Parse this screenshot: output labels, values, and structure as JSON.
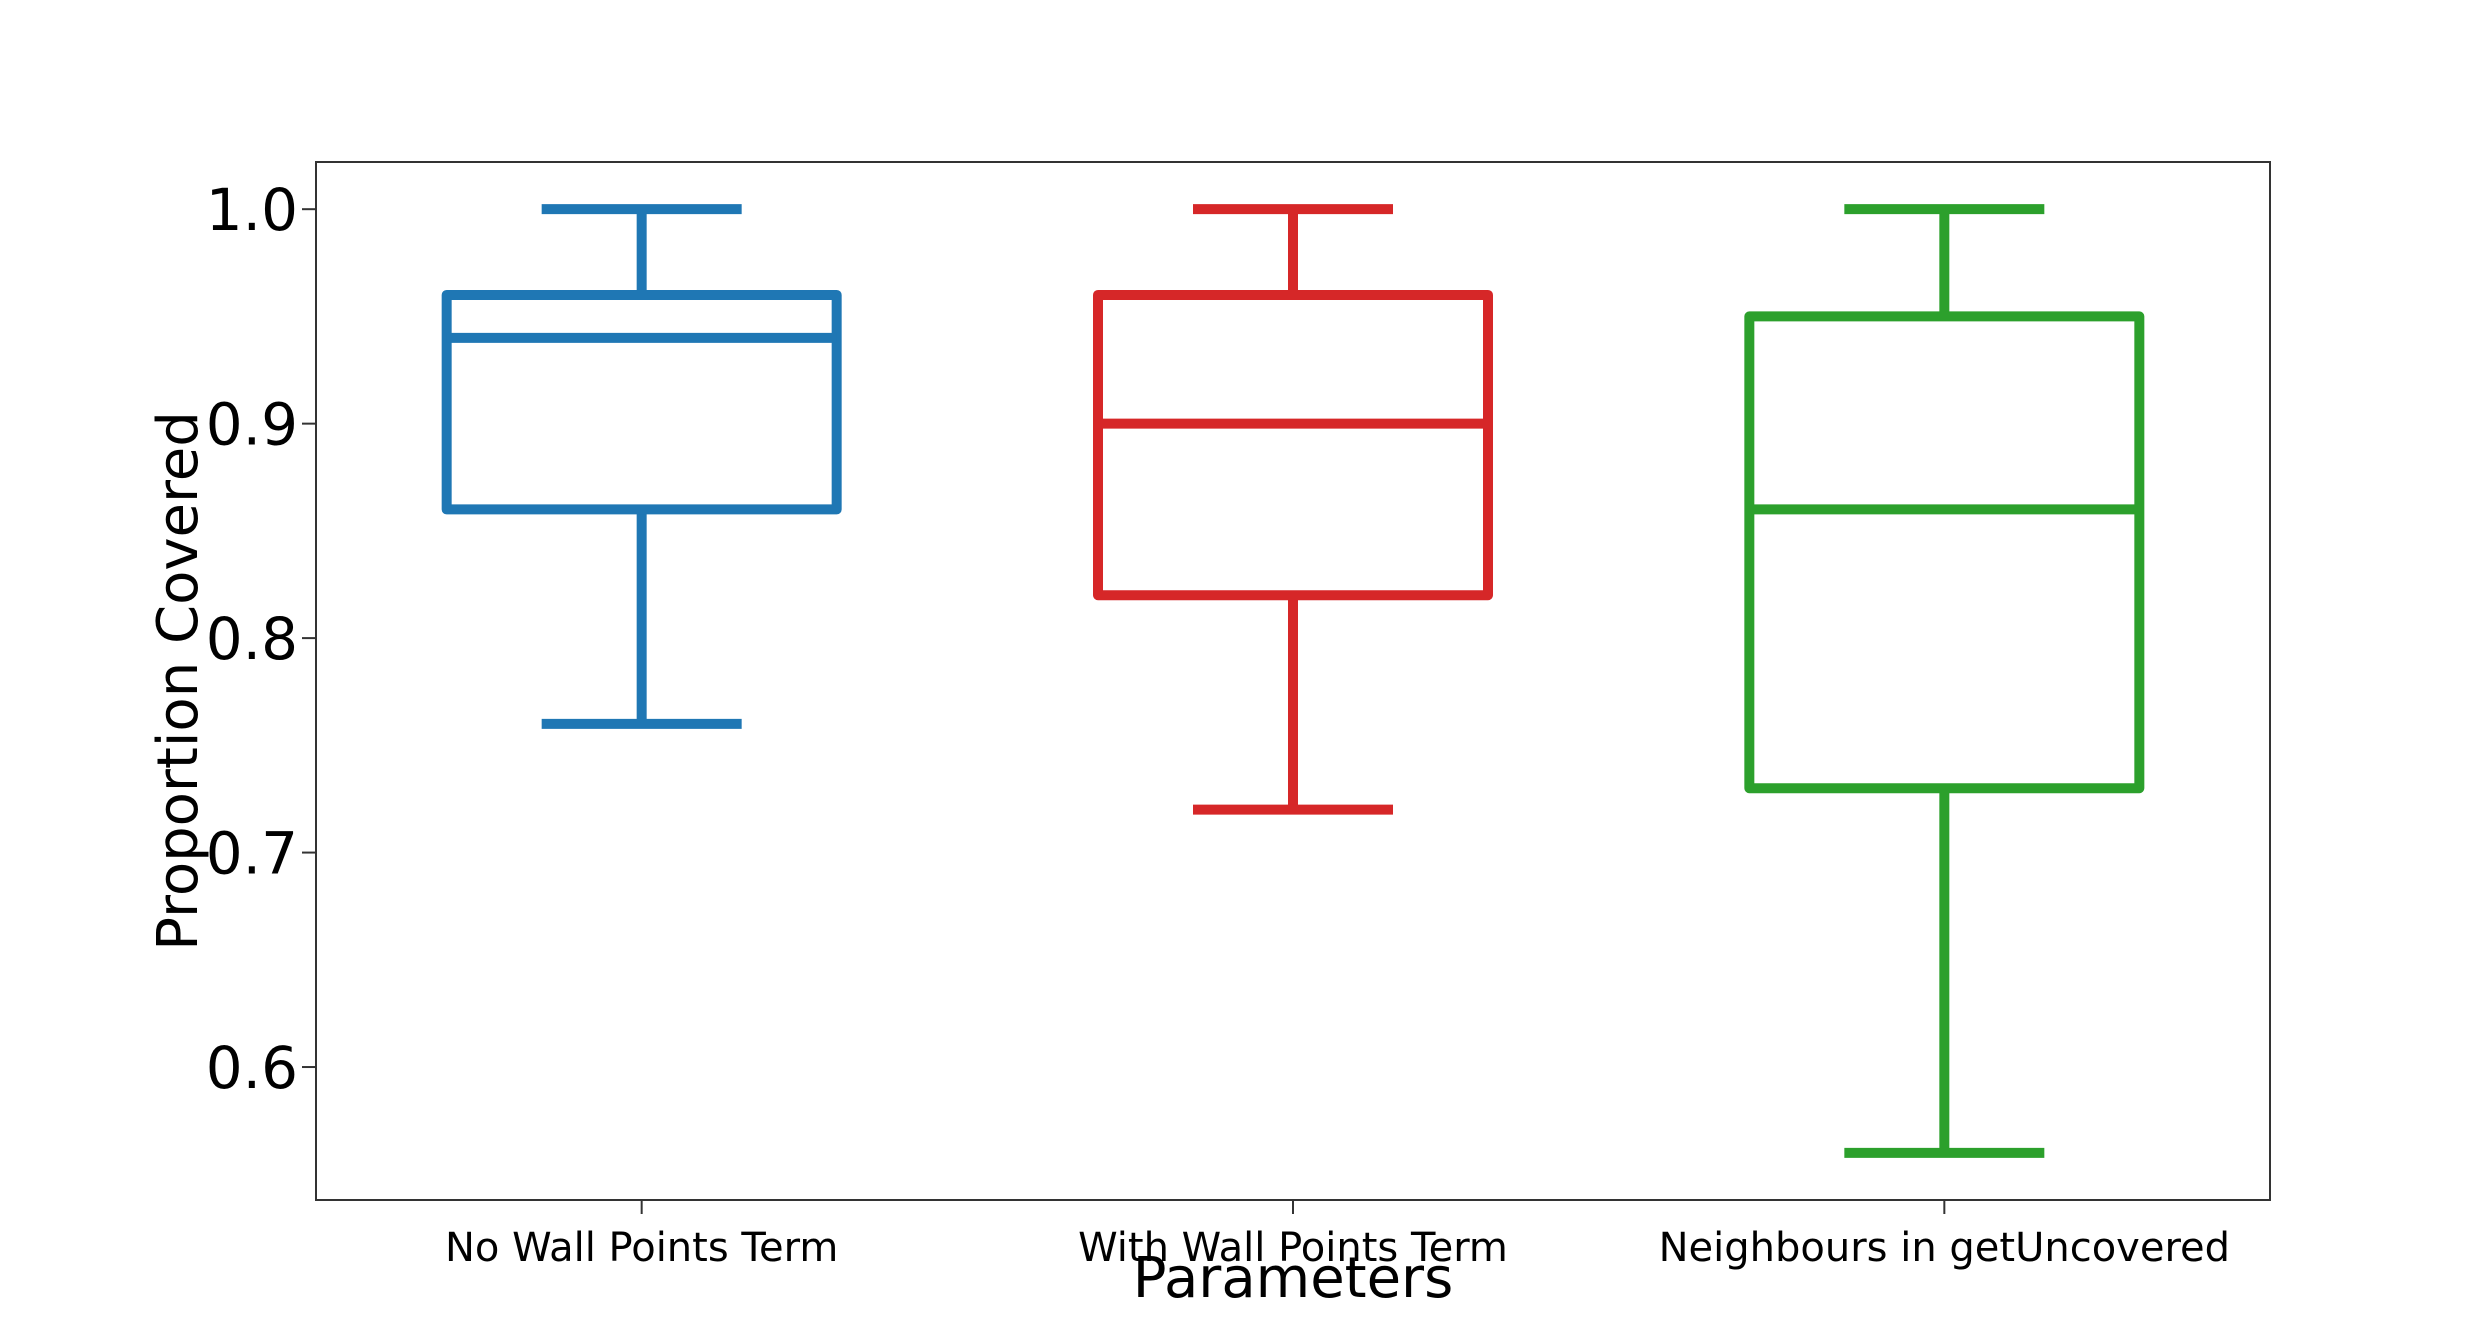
{
  "chart_data": {
    "type": "box",
    "title": "",
    "xlabel": "Parameters",
    "ylabel": "Proportion Covered",
    "ylim": [
      0.538,
      1.022
    ],
    "yticks": [
      0.6,
      0.7,
      0.8,
      0.9,
      1.0
    ],
    "ytick_labels": [
      "0.6",
      "0.7",
      "0.8",
      "0.9",
      "1.0"
    ],
    "grid": false,
    "categories": [
      "No Wall Points Term",
      "With Wall Points Term",
      "Neighbours in getUncovered"
    ],
    "series": [
      {
        "category": "No Wall Points Term",
        "color": "#1f77b4",
        "whisker_low": 0.76,
        "q1": 0.86,
        "median": 0.94,
        "q3": 0.96,
        "whisker_high": 1.0
      },
      {
        "category": "With Wall Points Term",
        "color": "#d62728",
        "whisker_low": 0.72,
        "q1": 0.82,
        "median": 0.9,
        "q3": 0.96,
        "whisker_high": 1.0
      },
      {
        "category": "Neighbours in getUncovered",
        "color": "#2ca02c",
        "whisker_low": 0.56,
        "q1": 0.73,
        "median": 0.86,
        "q3": 0.95,
        "whisker_high": 1.0
      }
    ]
  }
}
